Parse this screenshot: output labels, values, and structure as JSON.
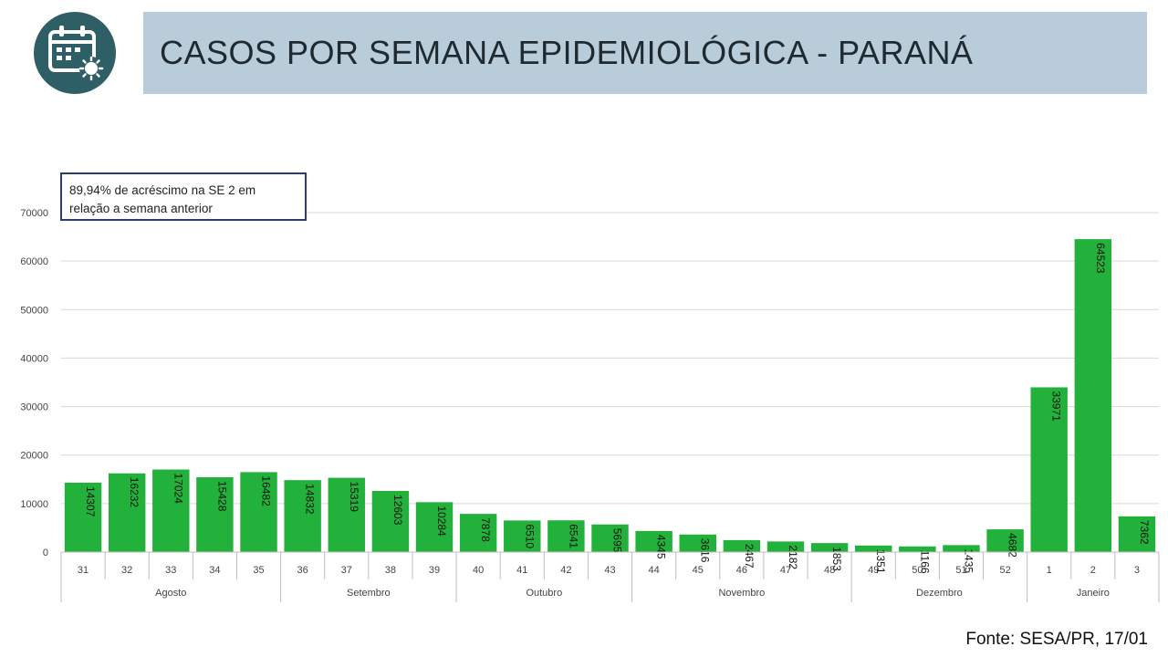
{
  "header": {
    "title": "CASOS POR SEMANA EPIDEMIOLÓGICA - PARANÁ",
    "icon": "calendar-virus-icon"
  },
  "annotation": {
    "line1": "89,94% de acréscimo na SE 2 em",
    "line2": "relação a semana anterior"
  },
  "source": "Fonte: SESA/PR, 17/01",
  "colors": {
    "bar": "#22b13a",
    "title_bar": "#b8ccd9",
    "icon_circle": "#2e5f66",
    "annotation_border": "#2a3d6b"
  },
  "chart_data": {
    "type": "bar",
    "categories": [
      "31",
      "32",
      "33",
      "34",
      "35",
      "36",
      "37",
      "38",
      "39",
      "40",
      "41",
      "42",
      "43",
      "44",
      "45",
      "46",
      "47",
      "48",
      "49",
      "50",
      "51",
      "52",
      "1",
      "2",
      "3"
    ],
    "values": [
      14307,
      16232,
      17024,
      15428,
      16482,
      14832,
      15319,
      12603,
      10284,
      7878,
      6510,
      6541,
      5695,
      4345,
      3616,
      2467,
      2182,
      1853,
      1351,
      1166,
      1435,
      4682,
      33971,
      64523,
      7362
    ],
    "groups": [
      {
        "label": "Agosto",
        "count": 5
      },
      {
        "label": "Setembro",
        "count": 4
      },
      {
        "label": "Outubro",
        "count": 4
      },
      {
        "label": "Novembro",
        "count": 5
      },
      {
        "label": "Dezembro",
        "count": 4
      },
      {
        "label": "Janeiro",
        "count": 3
      }
    ],
    "yticks": [
      "0",
      "10000",
      "20000",
      "30000",
      "40000",
      "50000",
      "60000",
      "70000"
    ],
    "ylim": [
      0,
      70000
    ],
    "grid": true,
    "data_labels": "rotated-inside-bar"
  }
}
